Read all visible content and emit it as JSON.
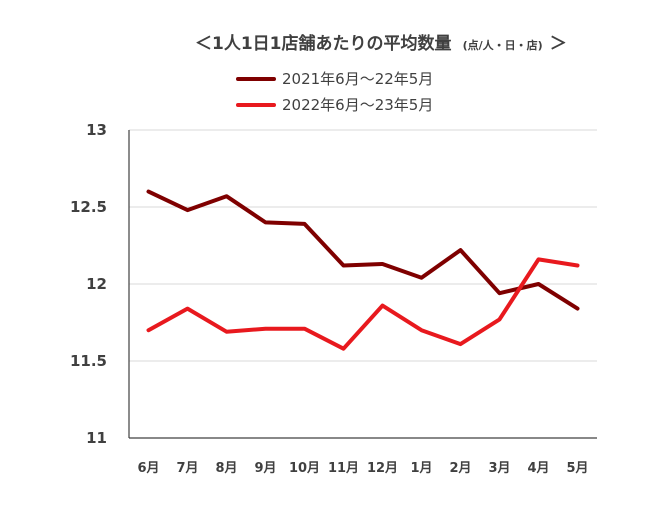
{
  "chart_data": {
    "type": "line",
    "title": "＜1人1日1店舗あたりの平均数量",
    "title_unit": "(点/人・日・店)",
    "title_close": "＞",
    "categories": [
      "6月",
      "7月",
      "8月",
      "9月",
      "10月",
      "11月",
      "12月",
      "1月",
      "2月",
      "3月",
      "4月",
      "5月"
    ],
    "series": [
      {
        "name": "2021年6月〜22年5月",
        "color": "#7f0000",
        "values": [
          12.6,
          12.48,
          12.57,
          12.4,
          12.39,
          12.12,
          12.13,
          12.04,
          12.22,
          11.94,
          12.0,
          11.84
        ]
      },
      {
        "name": "2022年6月〜23年5月",
        "color": "#e8191e",
        "values": [
          11.7,
          11.84,
          11.69,
          11.71,
          11.71,
          11.58,
          11.86,
          11.7,
          11.61,
          11.77,
          12.16,
          12.12
        ]
      }
    ],
    "ylim": [
      11,
      13
    ],
    "yticks": [
      13,
      12.5,
      12,
      11.5,
      11
    ],
    "yticklabels": [
      "13",
      "12.5",
      "12",
      "11.5",
      "11"
    ],
    "grid": true,
    "legend_position": "top-center",
    "xlabel": "",
    "ylabel": ""
  }
}
